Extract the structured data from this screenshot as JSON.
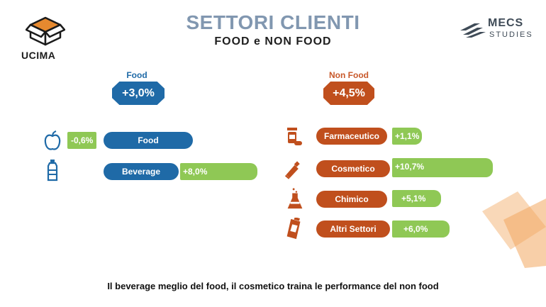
{
  "header": {
    "title": "SETTORI CLIENTI",
    "subtitle": "FOOD e NON FOOD"
  },
  "logos": {
    "ucima": "UCIMA",
    "mecs": "MECS",
    "mecs_sub": "STUDIES"
  },
  "colors": {
    "food": "#1f6aa7",
    "nonfood": "#c04f1d",
    "bar": "#8fc855",
    "title": "#8197b0"
  },
  "chart_data": [
    {
      "type": "bar",
      "group": "Food",
      "total": "+3,0%",
      "categories": [
        "Food",
        "Beverage"
      ],
      "values": [
        -0.6,
        8.0
      ],
      "value_labels": [
        "-0,6%",
        "+8,0%"
      ],
      "icons": [
        "apple-icon",
        "bottle-icon"
      ]
    },
    {
      "type": "bar",
      "group": "Non Food",
      "total": "+4,5%",
      "categories": [
        "Farmaceutico",
        "Cosmetico",
        "Chimico",
        "Altri Settori"
      ],
      "values": [
        1.1,
        10.7,
        5.1,
        6.0
      ],
      "value_labels": [
        "+1,1%",
        "+10,7%",
        "+5,1%",
        "+6,0%"
      ],
      "icons": [
        "pill-bottle-icon",
        "tube-icon",
        "flask-icon",
        "packet-icon"
      ]
    }
  ],
  "footer": "Il beverage meglio del food, il cosmetico traina le performance del non food"
}
